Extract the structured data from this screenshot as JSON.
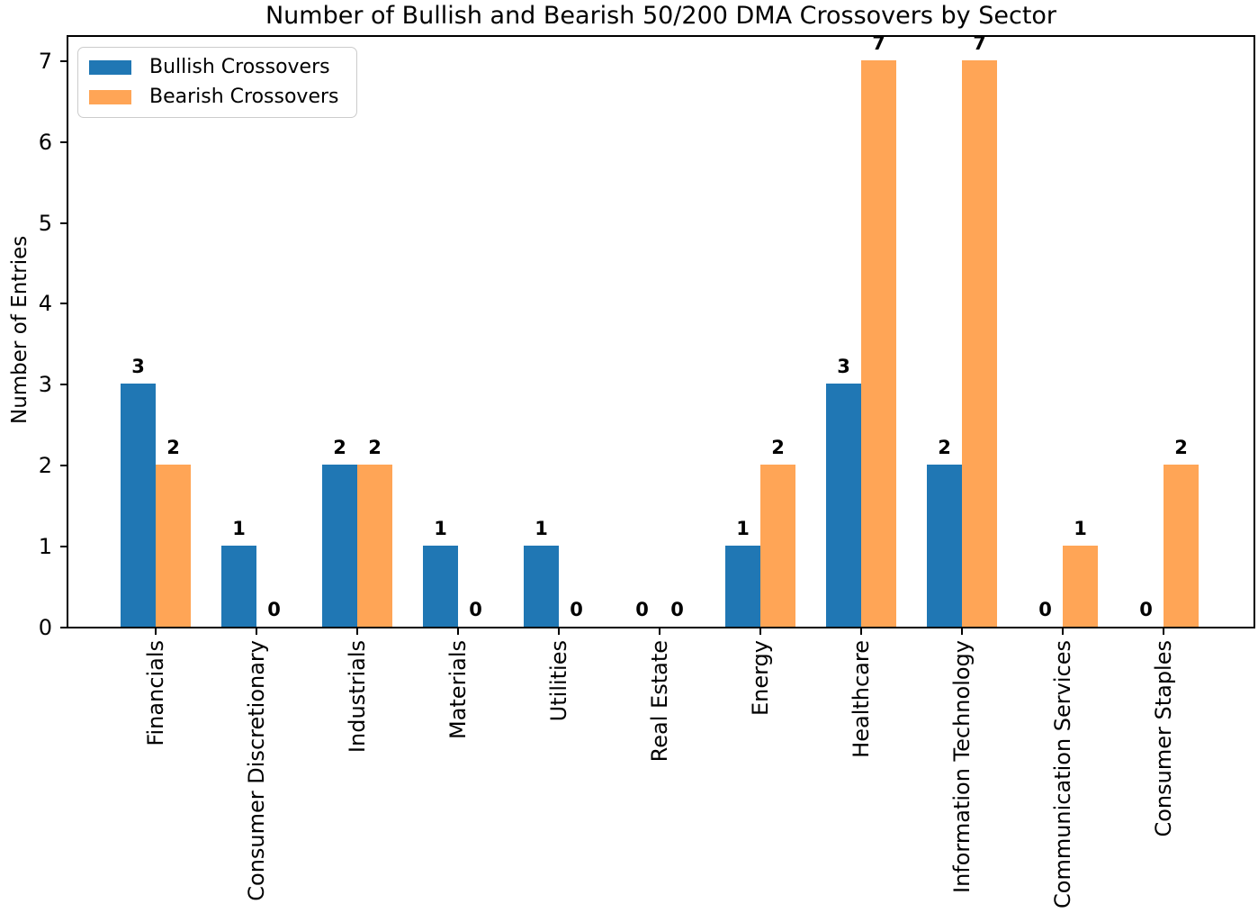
{
  "title": "Number of Bullish and Bearish 50/200 DMA Crossovers by Sector",
  "chart_data": {
    "type": "bar",
    "title": "Number of Bullish and Bearish 50/200 DMA Crossovers by Sector",
    "xlabel": "",
    "ylabel": "Number of Entries",
    "categories": [
      "Financials",
      "Consumer Discretionary",
      "Industrials",
      "Materials",
      "Utilities",
      "Real Estate",
      "Energy",
      "Healthcare",
      "Information Technology",
      "Communication Services",
      "Consumer Staples"
    ],
    "series": [
      {
        "name": "Bullish Crossovers",
        "color": "#2077b4",
        "values": [
          3,
          1,
          2,
          1,
          1,
          0,
          1,
          3,
          2,
          0,
          0
        ]
      },
      {
        "name": "Bearish Crossovers",
        "color": "#ffa556",
        "values": [
          2,
          0,
          2,
          0,
          0,
          0,
          2,
          7,
          7,
          1,
          2
        ]
      }
    ],
    "yticks": [
      0,
      1,
      2,
      3,
      4,
      5,
      6,
      7
    ],
    "ylim": [
      0,
      7.3
    ],
    "grid": false,
    "bar_value_labels": true,
    "legend_position": "upper left",
    "x_tick_rotation": 90
  }
}
